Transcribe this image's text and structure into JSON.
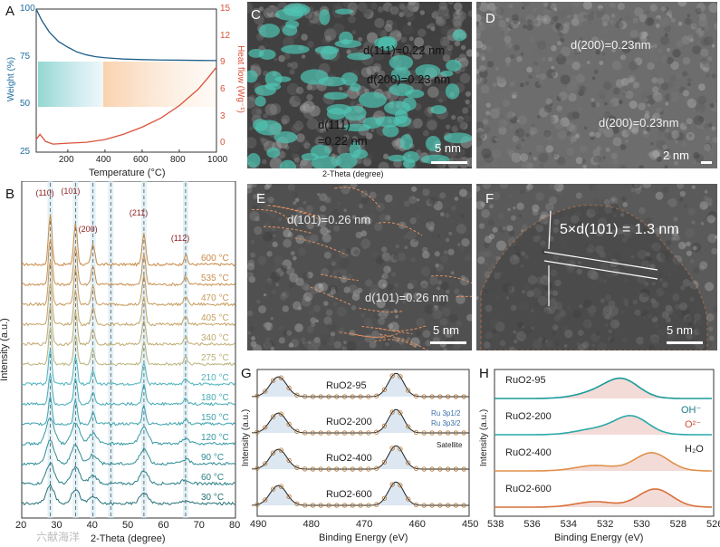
{
  "panels": {
    "A": {
      "label": "A",
      "chart_data": {
        "type": "line",
        "xlabel": "Temperature (°C)",
        "ylabel_left": "Weight (%)",
        "ylabel_right": "Heat flow (Wg⁻¹)",
        "xlim": [
          30,
          1000
        ],
        "ylim_left": [
          25,
          100
        ],
        "ylim_right": [
          -1,
          15
        ],
        "x_ticks": [
          "200",
          "400",
          "600",
          "800",
          "1000"
        ],
        "y_left_ticks": [
          "25",
          "50",
          "75",
          "100"
        ],
        "y_right_ticks": [
          "0",
          "3",
          "6",
          "9",
          "12",
          "15"
        ],
        "series": [
          {
            "name": "Weight",
            "axis": "left",
            "color": "#1f5f8b",
            "x": [
              30,
              60,
              100,
              150,
              200,
              250,
              300,
              350,
              400,
              500,
              600,
              700,
              800,
              900,
              1000
            ],
            "y": [
              100,
              94,
              88,
              83,
              80,
              77.5,
              76,
              75,
              74.5,
              73.8,
              73.5,
              73.3,
              73.2,
              73.1,
              73.0
            ]
          },
          {
            "name": "Heat flow",
            "axis": "right",
            "color": "#d9533b",
            "x": [
              30,
              50,
              80,
              120,
              200,
              300,
              400,
              500,
              600,
              700,
              800,
              900,
              950,
              1000
            ],
            "y": [
              0.4,
              1.0,
              0.2,
              -0.1,
              0.0,
              0.1,
              0.4,
              1.0,
              1.8,
              2.8,
              4.2,
              6.0,
              7.2,
              8.5
            ]
          }
        ]
      }
    },
    "B": {
      "label": "B",
      "chart_data": {
        "type": "line",
        "xlabel": "2-Theta (degree)",
        "ylabel": "Intensity (a.u.)",
        "xlim": [
          20,
          80
        ],
        "x_ticks": [
          "20",
          "30",
          "40",
          "50",
          "60",
          "70",
          "80"
        ],
        "peaks": [
          {
            "label": "(110)",
            "x": 28.0
          },
          {
            "label": "(101)",
            "x": 35.1
          },
          {
            "label": "(200)",
            "x": 40.0
          },
          {
            "label": "(211)",
            "x": 54.3
          },
          {
            "label": "(112)",
            "x": 66.0
          }
        ],
        "dashed_lines_x": [
          28.0,
          35.1,
          40.0,
          45.0,
          54.3,
          66.0
        ],
        "series": [
          {
            "name": "600 °C",
            "color": "#c88a45"
          },
          {
            "name": "535 °C",
            "color": "#c89050"
          },
          {
            "name": "470 °C",
            "color": "#c69a5a"
          },
          {
            "name": "405 °C",
            "color": "#c4a265"
          },
          {
            "name": "340 °C",
            "color": "#c0aa70"
          },
          {
            "name": "275 °C",
            "color": "#b8b27a"
          },
          {
            "name": "210 °C",
            "color": "#4fb3bd"
          },
          {
            "name": "180 °C",
            "color": "#47abb5"
          },
          {
            "name": "150 °C",
            "color": "#3ea2ad"
          },
          {
            "name": "120 °C",
            "color": "#3598a3"
          },
          {
            "name": "90 °C",
            "color": "#2e8c94"
          },
          {
            "name": "60 °C",
            "color": "#2a7f85"
          },
          {
            "name": "30 °C",
            "color": "#257075"
          }
        ]
      }
    },
    "C": {
      "label": "C",
      "ann1": "d(111)=0.22 nm",
      "ann2": "d(200)=0.23 nm",
      "ann3a": "d(111)",
      "ann3b": "=0.22 nm",
      "scale": "5 nm",
      "caption": "2-Theta (degree)"
    },
    "D": {
      "label": "D",
      "ann1": "d(200)=0.23nm",
      "ann2": "d(200)=0.23nm",
      "scale": "2 nm"
    },
    "E": {
      "label": "E",
      "ann1": "d(101)=0.26 nm",
      "ann2": "d(101)=0.26 nm",
      "scale": "5 nm"
    },
    "F": {
      "label": "F",
      "ann1": "5×d(101) = 1.3 nm",
      "scale": "5 nm"
    },
    "G": {
      "label": "G",
      "chart_data": {
        "type": "line",
        "xlabel": "Binding Energy (eV)",
        "ylabel": "Intensity (a.u.)",
        "xlim": [
          490,
          450
        ],
        "x_ticks": [
          "490",
          "480",
          "470",
          "460",
          "450"
        ],
        "peaks_eV": [
          486.0,
          463.8
        ],
        "legend": [
          "Ru 3p1/2",
          "Ru 3p3/2",
          "Satellite"
        ],
        "series": [
          {
            "name": "RuO2-95"
          },
          {
            "name": "RuO2-200"
          },
          {
            "name": "RuO2-400"
          },
          {
            "name": "RuO2-600"
          }
        ]
      }
    },
    "H": {
      "label": "H",
      "chart_data": {
        "type": "line",
        "xlabel": "Binding Energy (eV)",
        "ylabel": "Intensity (a.u.)",
        "xlim": [
          538,
          526
        ],
        "x_ticks": [
          "538",
          "536",
          "534",
          "532",
          "530",
          "528",
          "526"
        ],
        "legend": [
          "OH⁻",
          "O²⁻",
          "H₂O"
        ],
        "series": [
          {
            "name": "RuO2-95"
          },
          {
            "name": "RuO2-200"
          },
          {
            "name": "RuO2-400"
          },
          {
            "name": "RuO2-600"
          }
        ]
      }
    }
  },
  "watermark": "六献海洋"
}
